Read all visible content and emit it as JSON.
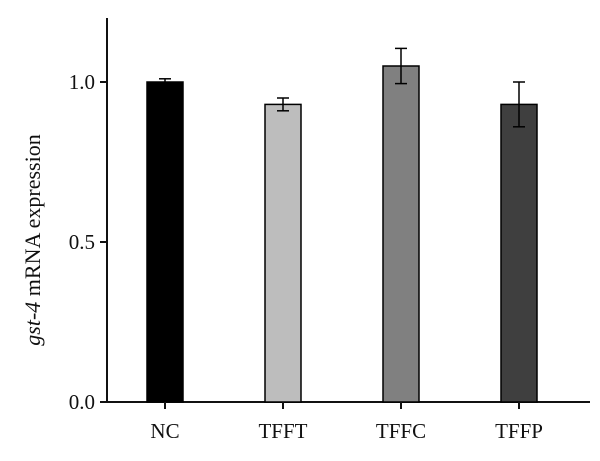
{
  "chart_data": {
    "type": "bar",
    "categories": [
      "NC",
      "TFFT",
      "TFFC",
      "TFFP"
    ],
    "values": [
      1.0,
      0.93,
      1.05,
      0.93
    ],
    "errors": [
      0.01,
      0.02,
      0.055,
      0.07
    ],
    "colors": [
      "#000000",
      "#bdbdbd",
      "#808080",
      "#3f3f3f"
    ],
    "ylabel_italic": "gst-4",
    "ylabel_rest": " mRNA expression",
    "ylim": [
      0,
      1.2
    ],
    "yticks": [
      0.0,
      0.5,
      1.0
    ],
    "ytick_labels": [
      "0.0",
      "0.5",
      "1.0"
    ],
    "grid": false
  }
}
